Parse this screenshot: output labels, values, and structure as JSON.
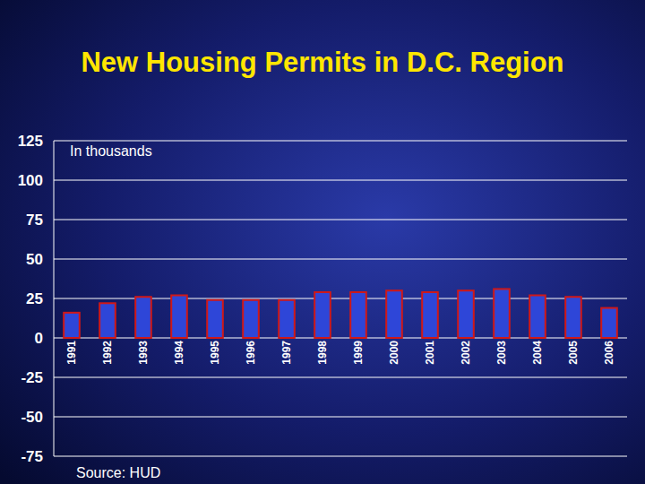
{
  "chart_data": {
    "type": "bar",
    "title": "New Housing Permits in D.C. Region",
    "annotations": [
      "In thousands",
      "Source: HUD"
    ],
    "categories": [
      "1991",
      "1992",
      "1993",
      "1994",
      "1995",
      "1996",
      "1997",
      "1998",
      "1999",
      "2000",
      "2001",
      "2002",
      "2003",
      "2004",
      "2005",
      "2006"
    ],
    "values": [
      16,
      22,
      26,
      27,
      24,
      24,
      24,
      29,
      29,
      30,
      29,
      30,
      31,
      27,
      26,
      19
    ],
    "color": "#2e46d8",
    "ylim": [
      -75,
      125
    ],
    "yticks": [
      -75,
      -50,
      -25,
      0,
      25,
      50,
      75,
      100,
      125
    ],
    "grid": true
  }
}
